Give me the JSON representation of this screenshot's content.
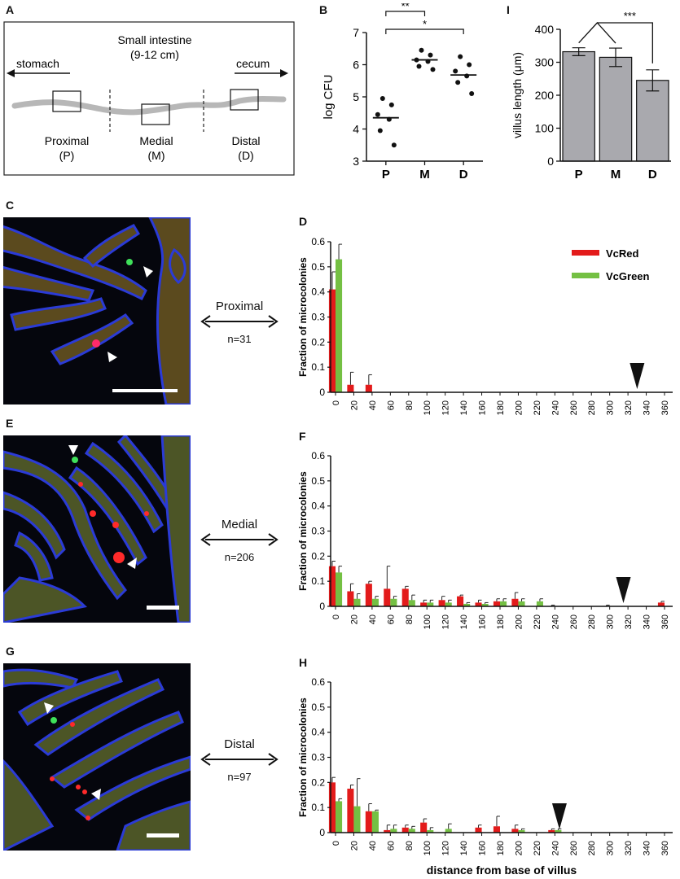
{
  "panels": {
    "A": "A",
    "B": "B",
    "I": "I",
    "C": "C",
    "D": "D",
    "E": "E",
    "F": "F",
    "G": "G",
    "H": "H"
  },
  "schematic": {
    "title": "Small intestine",
    "length": "(9-12 cm)",
    "left_label": "stomach",
    "right_label": "cecum",
    "segments": [
      {
        "name": "Proximal",
        "abbr": "(P)"
      },
      {
        "name": "Medial",
        "abbr": "(M)"
      },
      {
        "name": "Distal",
        "abbr": "(D)"
      }
    ]
  },
  "sections": [
    {
      "name": "Proximal",
      "n": "n=31"
    },
    {
      "name": "Medial",
      "n": "n=206"
    },
    {
      "name": "Distal",
      "n": "n=97"
    }
  ],
  "colors": {
    "vcred": "#e31b1b",
    "vcgreen": "#74c043",
    "bar_gray": "#a9a9ae",
    "tissue_blue": "#2b3bd6"
  },
  "chart_data": [
    {
      "id": "B",
      "type": "scatter",
      "categories": [
        "P",
        "M",
        "D"
      ],
      "ylabel": "log CFU",
      "ylim": [
        3,
        7
      ],
      "yticks": [
        3,
        4,
        5,
        6,
        7
      ],
      "points": [
        [
          4.95,
          4.75,
          4.45,
          4.3,
          3.95,
          3.5
        ],
        [
          6.45,
          6.3,
          6.15,
          6.1,
          5.95,
          5.85
        ],
        [
          6.25,
          6.0,
          5.8,
          5.65,
          5.45,
          5.1
        ]
      ],
      "medians": [
        4.35,
        6.15,
        5.68
      ],
      "significance": [
        {
          "from": "P",
          "to": "M",
          "label": "**"
        },
        {
          "from": "P",
          "to": "D",
          "label": "*"
        }
      ]
    },
    {
      "id": "I",
      "type": "bar",
      "categories": [
        "P",
        "M",
        "D"
      ],
      "values": [
        332,
        315,
        245
      ],
      "errors": [
        12,
        28,
        32
      ],
      "ylabel": "villus length (μm)",
      "ylim": [
        0,
        400
      ],
      "yticks": [
        0,
        100,
        200,
        300,
        400
      ],
      "significance": [
        {
          "from": [
            "P",
            "M"
          ],
          "to": "D",
          "label": "***"
        }
      ]
    },
    {
      "id": "D",
      "type": "bar",
      "title": "Proximal",
      "ylabel": "Fraction of microcolonies",
      "ylim": [
        0,
        0.6
      ],
      "yticks": [
        0,
        0.1,
        0.2,
        0.3,
        0.4,
        0.5,
        0.6
      ],
      "x": [
        0,
        20,
        40,
        60,
        80,
        100,
        120,
        140,
        160,
        180,
        200,
        220,
        240,
        260,
        280,
        300,
        320,
        340,
        360
      ],
      "legend_position": "top-right",
      "marker_x": 330,
      "series": [
        {
          "name": "VcRed",
          "color": "#e31b1b",
          "values": [
            0.41,
            0.03,
            0.03,
            0,
            0,
            0,
            0,
            0,
            0,
            0,
            0,
            0,
            0,
            0,
            0,
            0,
            0,
            0,
            0
          ],
          "errors": [
            0.07,
            0.05,
            0.04,
            0,
            0,
            0,
            0,
            0,
            0,
            0,
            0,
            0,
            0,
            0,
            0,
            0,
            0,
            0,
            0
          ]
        },
        {
          "name": "VcGreen",
          "color": "#74c043",
          "values": [
            0.53,
            0,
            0,
            0,
            0,
            0,
            0,
            0,
            0,
            0,
            0,
            0,
            0,
            0,
            0,
            0,
            0,
            0,
            0
          ],
          "errors": [
            0.06,
            0,
            0,
            0,
            0,
            0,
            0,
            0,
            0,
            0,
            0,
            0,
            0,
            0,
            0,
            0,
            0,
            0,
            0
          ]
        }
      ]
    },
    {
      "id": "F",
      "type": "bar",
      "title": "Medial",
      "ylabel": "Fraction of microcolonies",
      "ylim": [
        0,
        0.6
      ],
      "yticks": [
        0,
        0.1,
        0.2,
        0.3,
        0.4,
        0.5,
        0.6
      ],
      "x": [
        0,
        20,
        40,
        60,
        80,
        100,
        120,
        140,
        160,
        180,
        200,
        220,
        240,
        260,
        280,
        300,
        320,
        340,
        360
      ],
      "marker_x": 315,
      "series": [
        {
          "name": "VcRed",
          "color": "#e31b1b",
          "values": [
            0.16,
            0.06,
            0.09,
            0.07,
            0.07,
            0.015,
            0.025,
            0.04,
            0.015,
            0.02,
            0.03,
            0,
            0,
            0,
            0,
            0,
            0,
            0,
            0.015
          ],
          "errors": [
            0.02,
            0.03,
            0.01,
            0.09,
            0.01,
            0.01,
            0.015,
            0.005,
            0.01,
            0.01,
            0.025,
            0,
            0.005,
            0,
            0,
            0.005,
            0,
            0,
            0.005
          ]
        },
        {
          "name": "VcGreen",
          "color": "#74c043",
          "values": [
            0.135,
            0.03,
            0.03,
            0.03,
            0.025,
            0.015,
            0.015,
            0.01,
            0.01,
            0.02,
            0.02,
            0.02,
            0,
            0,
            0,
            0,
            0,
            0,
            0
          ],
          "errors": [
            0.025,
            0.02,
            0.01,
            0.01,
            0.02,
            0.01,
            0.01,
            0.005,
            0.005,
            0.01,
            0.01,
            0.01,
            0,
            0,
            0,
            0,
            0,
            0,
            0
          ]
        }
      ]
    },
    {
      "id": "H",
      "type": "bar",
      "title": "Distal",
      "ylabel": "Fraction of microcolonies",
      "xlabel": "distance from base of villus",
      "ylim": [
        0,
        0.6
      ],
      "yticks": [
        0,
        0.1,
        0.2,
        0.3,
        0.4,
        0.5,
        0.6
      ],
      "x": [
        0,
        20,
        40,
        60,
        80,
        100,
        120,
        140,
        160,
        180,
        200,
        220,
        240,
        260,
        280,
        300,
        320,
        340,
        360
      ],
      "marker_x": 245,
      "series": [
        {
          "name": "VcRed",
          "color": "#e31b1b",
          "values": [
            0.2,
            0.175,
            0.085,
            0.01,
            0.02,
            0.04,
            0,
            0,
            0.02,
            0.025,
            0.015,
            0,
            0.01,
            0,
            0,
            0,
            0,
            0,
            0
          ],
          "errors": [
            0.02,
            0.015,
            0.03,
            0.02,
            0.01,
            0.015,
            0,
            0,
            0.01,
            0.04,
            0.015,
            0,
            0.005,
            0,
            0,
            0,
            0,
            0,
            0
          ],
          "note": ""
        },
        {
          "name": "VcGreen",
          "color": "#74c043",
          "values": [
            0.125,
            0.105,
            0.085,
            0.015,
            0.015,
            0.01,
            0.015,
            0,
            0,
            0,
            0.01,
            0,
            0.01,
            0,
            0,
            0,
            0,
            0,
            0
          ],
          "errors": [
            0.01,
            0.11,
            0.005,
            0.015,
            0.01,
            0.01,
            0.02,
            0,
            0,
            0,
            0.005,
            0,
            0.005,
            0,
            0,
            0,
            0,
            0,
            0
          ]
        }
      ]
    }
  ]
}
